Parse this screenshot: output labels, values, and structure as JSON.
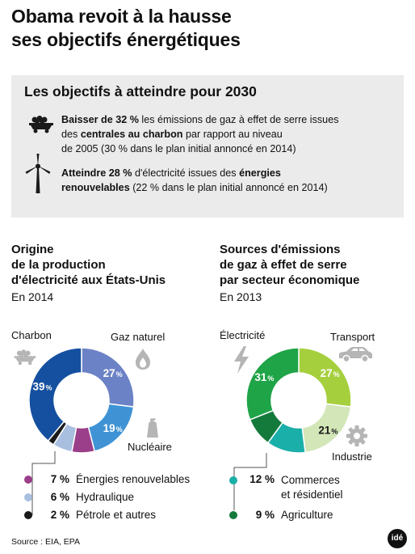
{
  "title_line1": "Obama revoit à la hausse",
  "title_line2": "ses objectifs énergétiques",
  "goals": {
    "title": "Les objectifs à atteindre pour 2030",
    "g1": {
      "bold1": "Baisser de 32 %",
      "t1": " les émissions de gaz à effet de serre issues",
      "t2": "des ",
      "bold2": "centrales au charbon",
      "t3": " par rapport au niveau",
      "t4": "de 2005 (30 % dans le plan initial annoncé en 2014)"
    },
    "g2": {
      "bold1": "Atteindre 28 %",
      "t1": " d'électricité issues des ",
      "bold2": "énergies",
      "bold3": "renouvelables",
      "t2": " (22 % dans le plan initial annoncé en 2014)"
    }
  },
  "left": {
    "title1": "Origine",
    "title2": "de la production",
    "title3": "d'électricité aux États-Unis",
    "subtitle": "En 2014",
    "label_charbon": "Charbon",
    "label_gaz": "Gaz naturel",
    "label_nucleaire": "Nucléaire",
    "legend": [
      {
        "value": "7 %",
        "label": "Énergies renouvelables",
        "color": "#9b3f8a"
      },
      {
        "value": "6 %",
        "label": "Hydraulique",
        "color": "#a9bfe0"
      },
      {
        "value": "2 %",
        "label": "Pétrole et autres",
        "color": "#1a1a1a"
      }
    ]
  },
  "right": {
    "title1": "Sources d'émissions",
    "title2": "de gaz à effet de serre",
    "title3": "par secteur économique",
    "subtitle": "En 2013",
    "label_electricite": "Électricité",
    "label_transport": "Transport",
    "label_industrie": "Industrie",
    "legend": [
      {
        "value": "12 %",
        "label": "Commerces",
        "label2": "et résidentiel",
        "color": "#1aafa8"
      },
      {
        "value": "9 %",
        "label": "Agriculture",
        "color": "#147a3c"
      }
    ]
  },
  "chart_data": [
    {
      "type": "pie",
      "title": "Origine de la production d'électricité aux États-Unis",
      "subtitle": "En 2014",
      "categories": [
        "Charbon",
        "Gaz naturel",
        "Nucléaire",
        "Énergies renouvelables",
        "Hydraulique",
        "Pétrole et autres"
      ],
      "values": [
        39,
        27,
        19,
        7,
        6,
        2
      ],
      "colors": [
        "#1550a0",
        "#6c82c6",
        "#3f93d4",
        "#9b3f8a",
        "#a9bfe0",
        "#1a1a1a"
      ],
      "labels": [
        "39",
        "27",
        "19",
        "",
        "",
        ""
      ],
      "unit": "%"
    },
    {
      "type": "pie",
      "title": "Sources d'émissions de gaz à effet de serre par secteur économique",
      "subtitle": "En 2013",
      "categories": [
        "Électricité",
        "Transport",
        "Industrie",
        "Commerces et résidentiel",
        "Agriculture"
      ],
      "values": [
        31,
        27,
        21,
        12,
        9
      ],
      "colors": [
        "#1fa447",
        "#a6cf3e",
        "#d3e6b8",
        "#1aafa8",
        "#147a3c"
      ],
      "labels": [
        "31",
        "27",
        "21",
        "",
        ""
      ],
      "unit": "%"
    }
  ],
  "source": "Source : EIA, EPA",
  "logo": "idé"
}
